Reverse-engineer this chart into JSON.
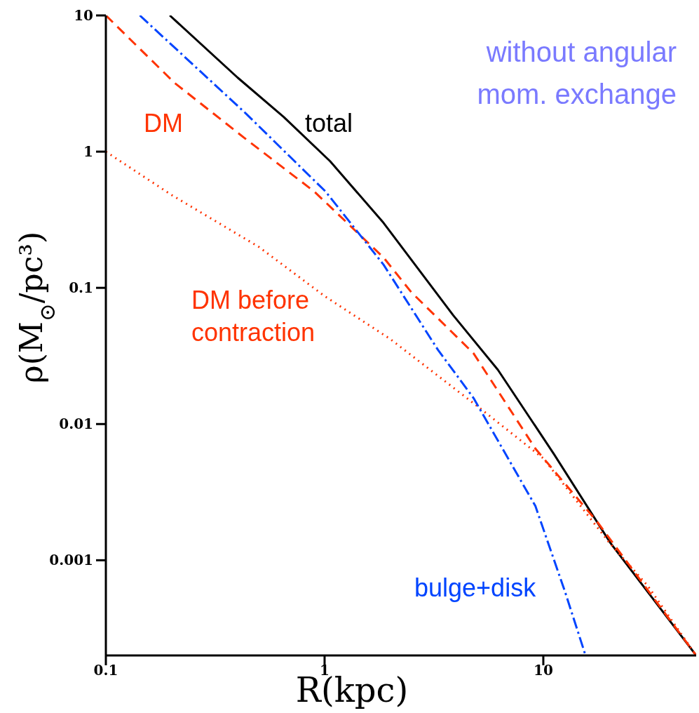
{
  "chart_data": {
    "type": "line",
    "xlabel": "R(kpc)",
    "ylabel": "ρ(M$_{⊙}$/pc³)",
    "log": "xy",
    "xlim": [
      0.1,
      50
    ],
    "xticks": [
      0.1,
      1,
      10
    ],
    "ylim": [
      0.0002,
      10
    ],
    "yticks": [
      0.001,
      0.01,
      0.1,
      1,
      10
    ],
    "annotations": [
      "without angular mom. exchange"
    ],
    "series": [
      {
        "name": "total",
        "color": "#000000",
        "line_style": "solid",
        "x": [
          0.196,
          0.4,
          0.65,
          1.06,
          1.86,
          3.87,
          6.2,
          11.2,
          20.2,
          50
        ],
        "values": [
          10,
          3.5,
          1.8,
          0.85,
          0.3,
          0.063,
          0.025,
          0.006,
          0.00135,
          0.0002
        ]
      },
      {
        "name": "DM",
        "color": "#ff3300",
        "line_style": "dashed",
        "x": [
          0.1,
          0.206,
          0.43,
          0.896,
          1.86,
          2.49,
          4.8,
          9.2,
          17.7,
          50
        ],
        "values": [
          10,
          3.2,
          1.26,
          0.51,
          0.167,
          0.093,
          0.033,
          0.0066,
          0.0019,
          0.0002
        ]
      },
      {
        "name": "DM before contraction",
        "color": "#ff3300",
        "line_style": "dotted",
        "x": [
          0.1,
          0.2,
          0.5,
          1,
          2,
          5,
          10,
          20,
          30,
          50
        ],
        "values": [
          1,
          0.48,
          0.2,
          0.087,
          0.042,
          0.0135,
          0.0056,
          0.00135,
          0.00065,
          0.0002
        ]
      },
      {
        "name": "bulge+disk",
        "color": "#0044ff",
        "line_style": "dashdot",
        "x": [
          0.143,
          0.43,
          1.01,
          1.86,
          3.3,
          4.8,
          9.2,
          12.6,
          15.6
        ],
        "values": [
          10,
          1.95,
          0.51,
          0.148,
          0.035,
          0.0155,
          0.0025,
          0.00058,
          0.0002
        ]
      }
    ]
  }
}
